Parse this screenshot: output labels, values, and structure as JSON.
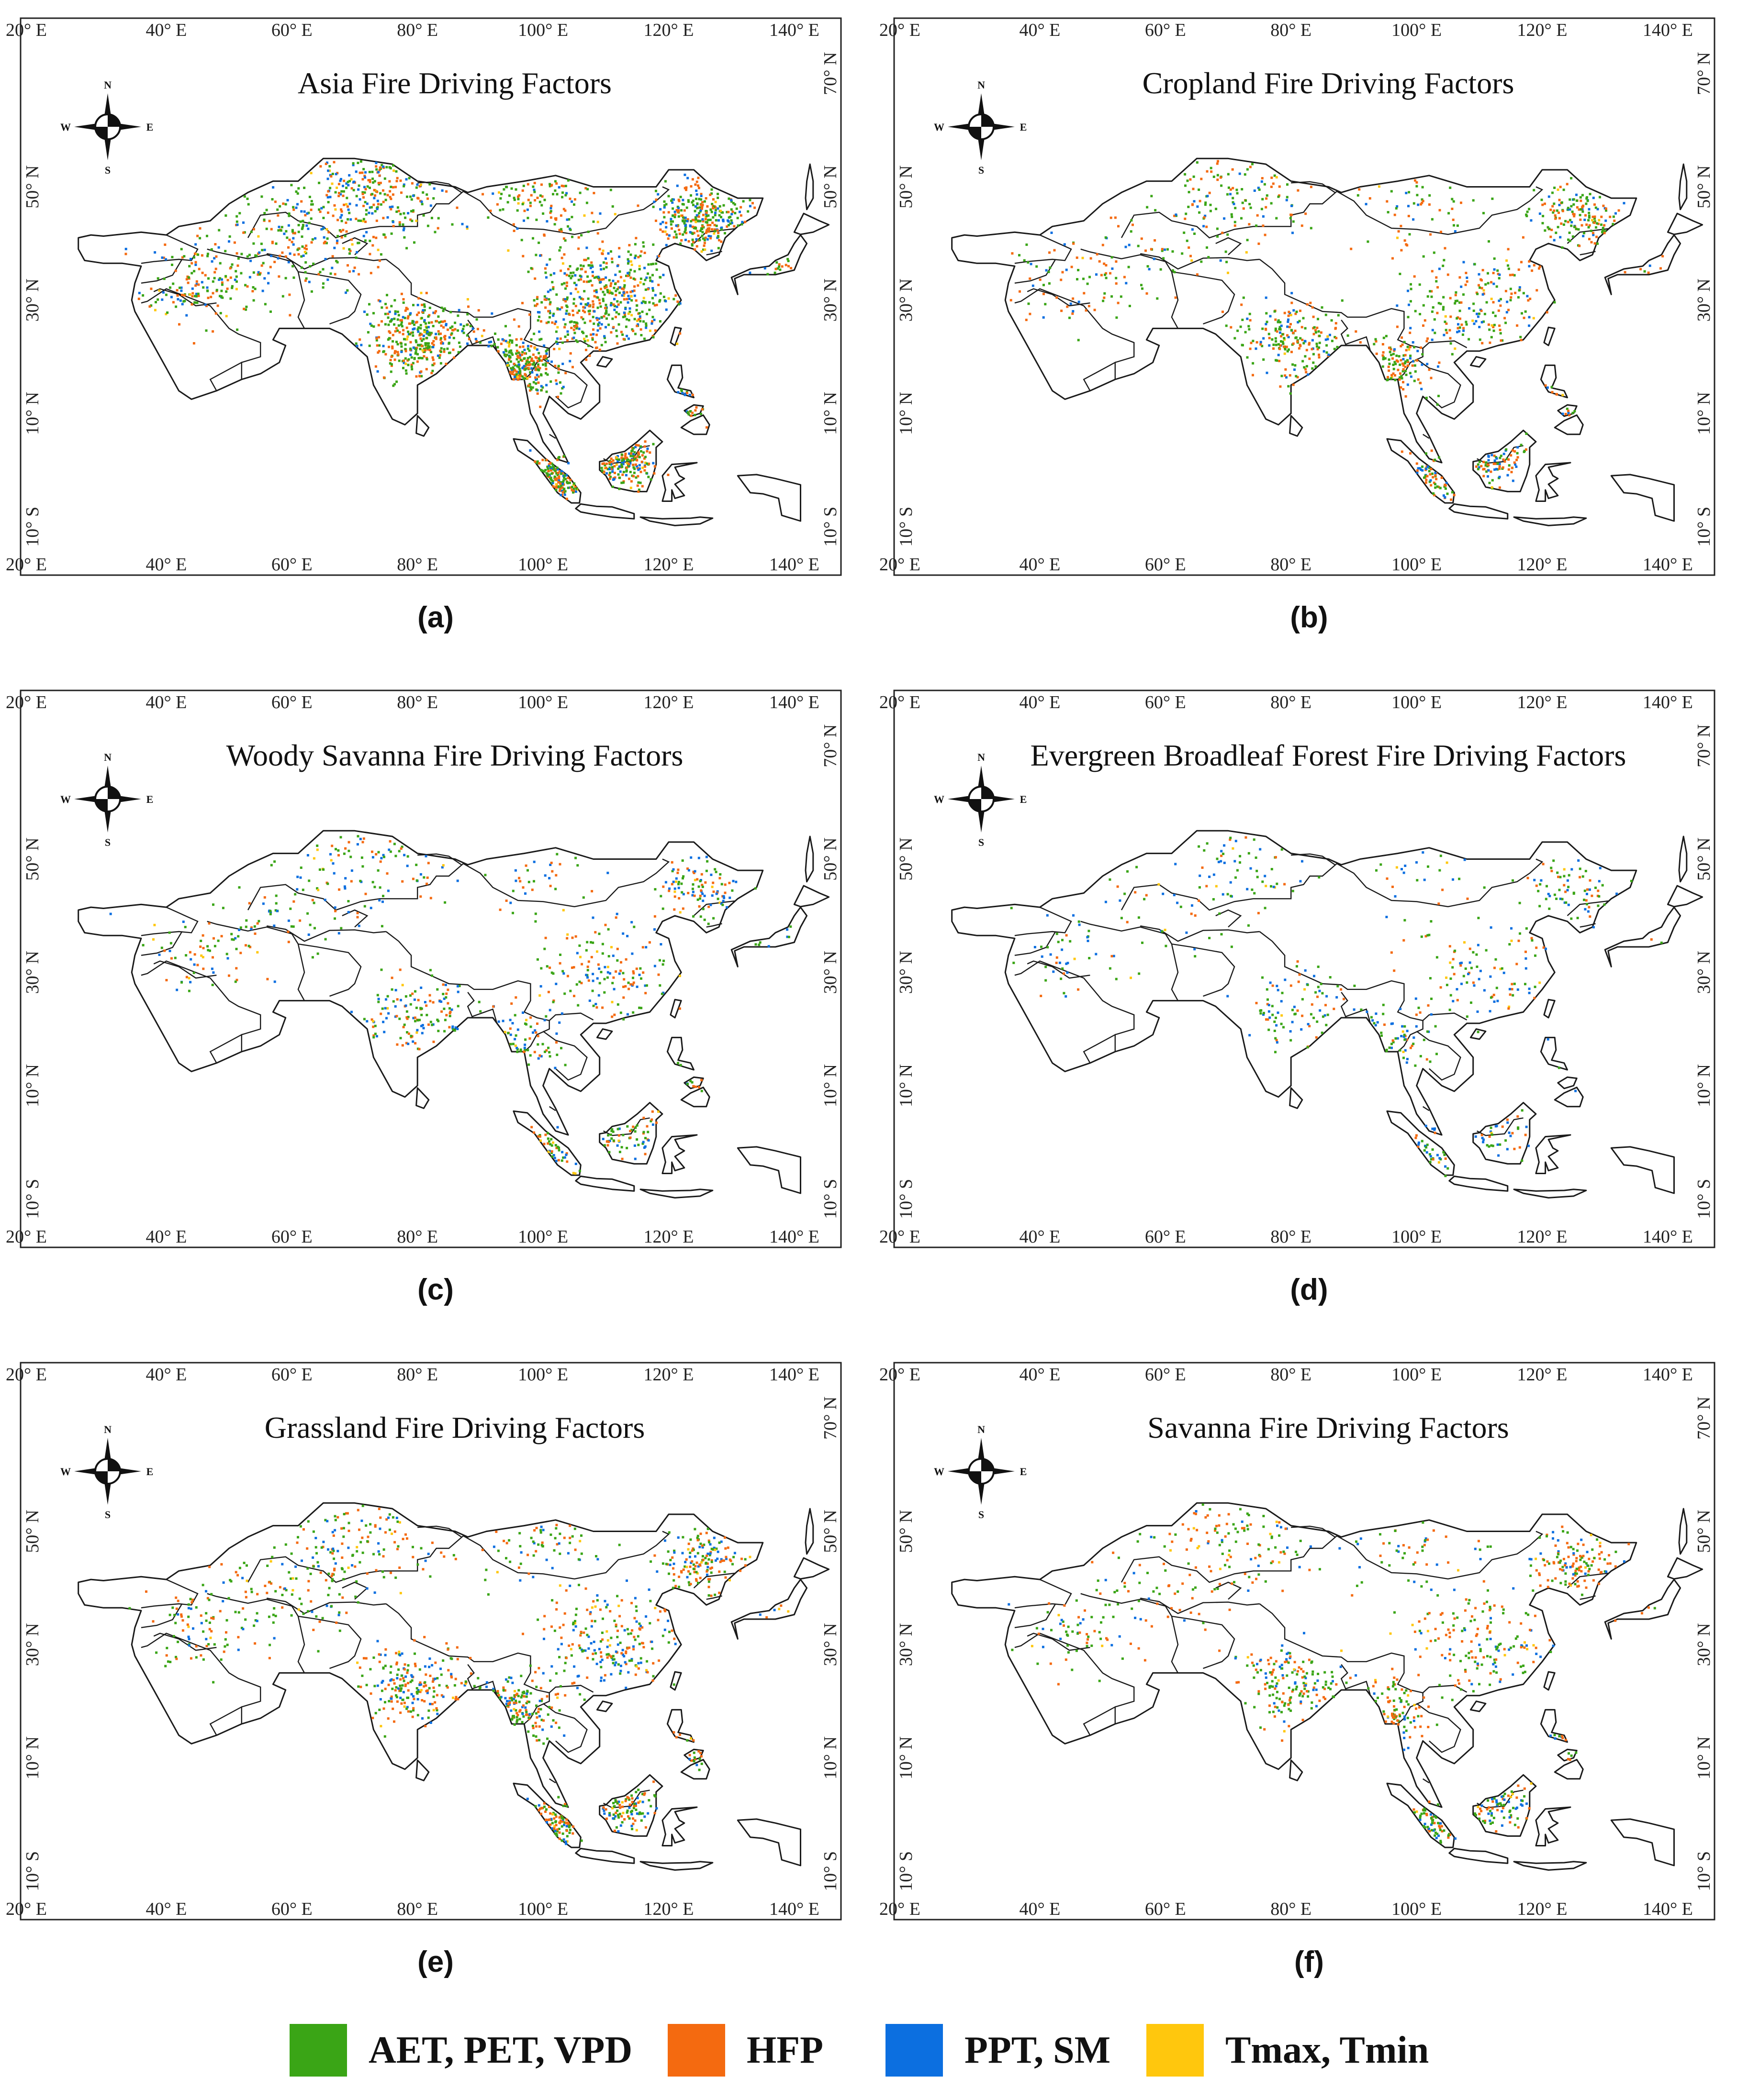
{
  "figure": {
    "x_ticks": [
      "20° E",
      "40° E",
      "60° E",
      "80° E",
      "100° E",
      "120° E",
      "140° E"
    ],
    "y_ticks": [
      "70° N",
      "50° N",
      "30° N",
      "10° N",
      "10° S"
    ],
    "compass": {
      "n": "N",
      "s": "S",
      "e": "E",
      "w": "W"
    }
  },
  "panels": [
    {
      "label": "(a)",
      "title": "Asia Fire Driving Factors",
      "density": 1.0,
      "mix": {
        "aet_pet_vpd": 0.45,
        "hfp": 0.33,
        "ppt_sm": 0.17,
        "tmax_tmin": 0.05
      }
    },
    {
      "label": "(b)",
      "title": "Cropland Fire Driving Factors",
      "density": 0.45,
      "mix": {
        "aet_pet_vpd": 0.42,
        "hfp": 0.4,
        "ppt_sm": 0.15,
        "tmax_tmin": 0.03
      }
    },
    {
      "label": "(c)",
      "title": "Woody Savanna Fire Driving Factors",
      "density": 0.32,
      "mix": {
        "aet_pet_vpd": 0.4,
        "hfp": 0.3,
        "ppt_sm": 0.25,
        "tmax_tmin": 0.05
      }
    },
    {
      "label": "(d)",
      "title": "Evergreen Broadleaf Forest Fire Driving Factors",
      "density": 0.22,
      "mix": {
        "aet_pet_vpd": 0.45,
        "hfp": 0.2,
        "ppt_sm": 0.32,
        "tmax_tmin": 0.03
      }
    },
    {
      "label": "(e)",
      "title": "Grassland Fire Driving Factors",
      "density": 0.5,
      "mix": {
        "aet_pet_vpd": 0.42,
        "hfp": 0.36,
        "ppt_sm": 0.18,
        "tmax_tmin": 0.04
      }
    },
    {
      "label": "(f)",
      "title": "Savanna Fire Driving Factors",
      "density": 0.38,
      "mix": {
        "aet_pet_vpd": 0.44,
        "hfp": 0.34,
        "ppt_sm": 0.17,
        "tmax_tmin": 0.05
      }
    }
  ],
  "legend": [
    {
      "label": "AET, PET, VPD",
      "color": "#3aa516"
    },
    {
      "label": "HFP",
      "color": "#f46a10"
    },
    {
      "label": "PPT, SM",
      "color": "#0c6fe0"
    },
    {
      "label": "Tmax, Tmin",
      "color": "#ffc70d"
    }
  ]
}
